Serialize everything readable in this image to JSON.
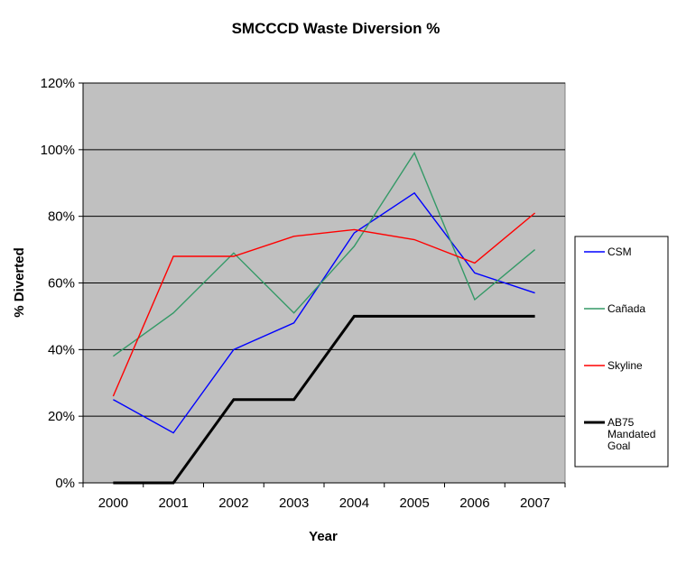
{
  "chart_data": {
    "type": "line",
    "title": "SMCCCD Waste Diversion %",
    "xlabel": "Year",
    "ylabel": "% Diverted",
    "categories": [
      "2000",
      "2001",
      "2002",
      "2003",
      "2004",
      "2005",
      "2006",
      "2007"
    ],
    "ylim": [
      0,
      120
    ],
    "yticks": [
      "0%",
      "20%",
      "40%",
      "60%",
      "80%",
      "100%",
      "120%"
    ],
    "grid": true,
    "legend_position": "right",
    "plot_background": "#c0c0c0",
    "series": [
      {
        "name": "CSM",
        "color": "#0000ff",
        "line_width": "normal",
        "values": [
          25,
          15,
          40,
          48,
          75,
          87,
          63,
          57
        ]
      },
      {
        "name": "Cañada",
        "color": "#339966",
        "line_width": "normal",
        "values": [
          38,
          51,
          69,
          51,
          71,
          99,
          55,
          70
        ]
      },
      {
        "name": "Skyline",
        "color": "#ff0000",
        "line_width": "normal",
        "values": [
          26,
          68,
          68,
          74,
          76,
          73,
          66,
          81
        ]
      },
      {
        "name": "AB75 Mandated Goal",
        "color": "#000000",
        "line_width": "thick",
        "values": [
          0,
          0,
          25,
          25,
          50,
          50,
          50,
          50
        ]
      }
    ]
  }
}
